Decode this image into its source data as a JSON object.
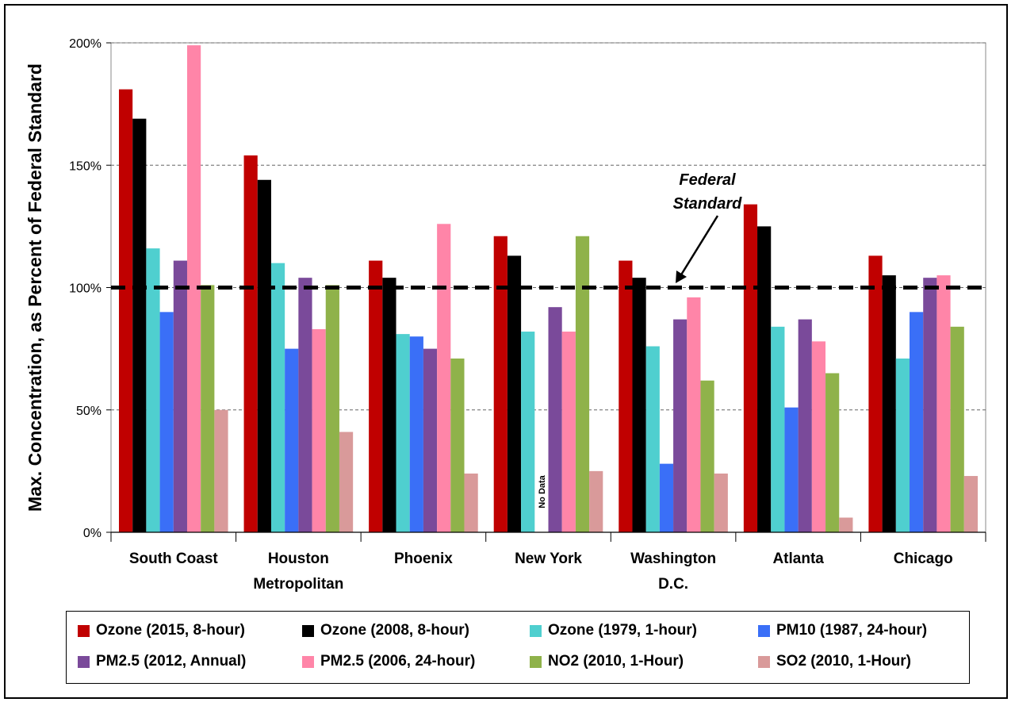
{
  "chart_data": {
    "type": "bar",
    "ylabel": "Max. Concentration, as Percent of Federal Standard",
    "ylim": [
      0,
      200
    ],
    "yticks": [
      "0%",
      "50%",
      "100%",
      "150%",
      "200%"
    ],
    "grid": true,
    "categories": [
      [
        "South Coast"
      ],
      [
        "Houston",
        "Metropolitan"
      ],
      [
        "Phoenix"
      ],
      [
        "New York"
      ],
      [
        "Washington",
        "D.C."
      ],
      [
        "Atlanta"
      ],
      [
        "Chicago"
      ]
    ],
    "series": [
      {
        "name": "Ozone (2015, 8-hour)",
        "color": "#c00000",
        "values": [
          181,
          154,
          111,
          121,
          111,
          134,
          113
        ]
      },
      {
        "name": "Ozone (2008, 8-hour)",
        "color": "#000000",
        "values": [
          169,
          144,
          104,
          113,
          104,
          125,
          105
        ]
      },
      {
        "name": "Ozone (1979, 1-hour)",
        "color": "#4fcfcf",
        "values": [
          116,
          110,
          81,
          82,
          76,
          84,
          71
        ]
      },
      {
        "name": "PM10 (1987, 24-hour)",
        "color": "#3a6ff7",
        "values": [
          90,
          75,
          80,
          null,
          28,
          51,
          90
        ]
      },
      {
        "name": "PM2.5 (2012, Annual)",
        "color": "#7a4a9a",
        "values": [
          111,
          104,
          75,
          92,
          87,
          87,
          104
        ]
      },
      {
        "name": "PM2.5 (2006, 24-hour)",
        "color": "#ff85a8",
        "values": [
          199,
          83,
          126,
          82,
          96,
          78,
          105
        ]
      },
      {
        "name": "NO2 (2010, 1-Hour)",
        "color": "#8fb24a",
        "values": [
          101,
          101,
          71,
          121,
          62,
          65,
          84
        ]
      },
      {
        "name": "SO2 (2010, 1-Hour)",
        "color": "#d99a9a",
        "values": [
          50,
          41,
          24,
          25,
          24,
          6,
          23
        ]
      }
    ],
    "reference_line": {
      "value": 100,
      "label": [
        "Federal",
        "Standard"
      ]
    },
    "annotations": [
      {
        "text": "No Data",
        "category": "New York",
        "series": "PM10 (1987, 24-hour)"
      }
    ],
    "legend_position": "bottom"
  }
}
